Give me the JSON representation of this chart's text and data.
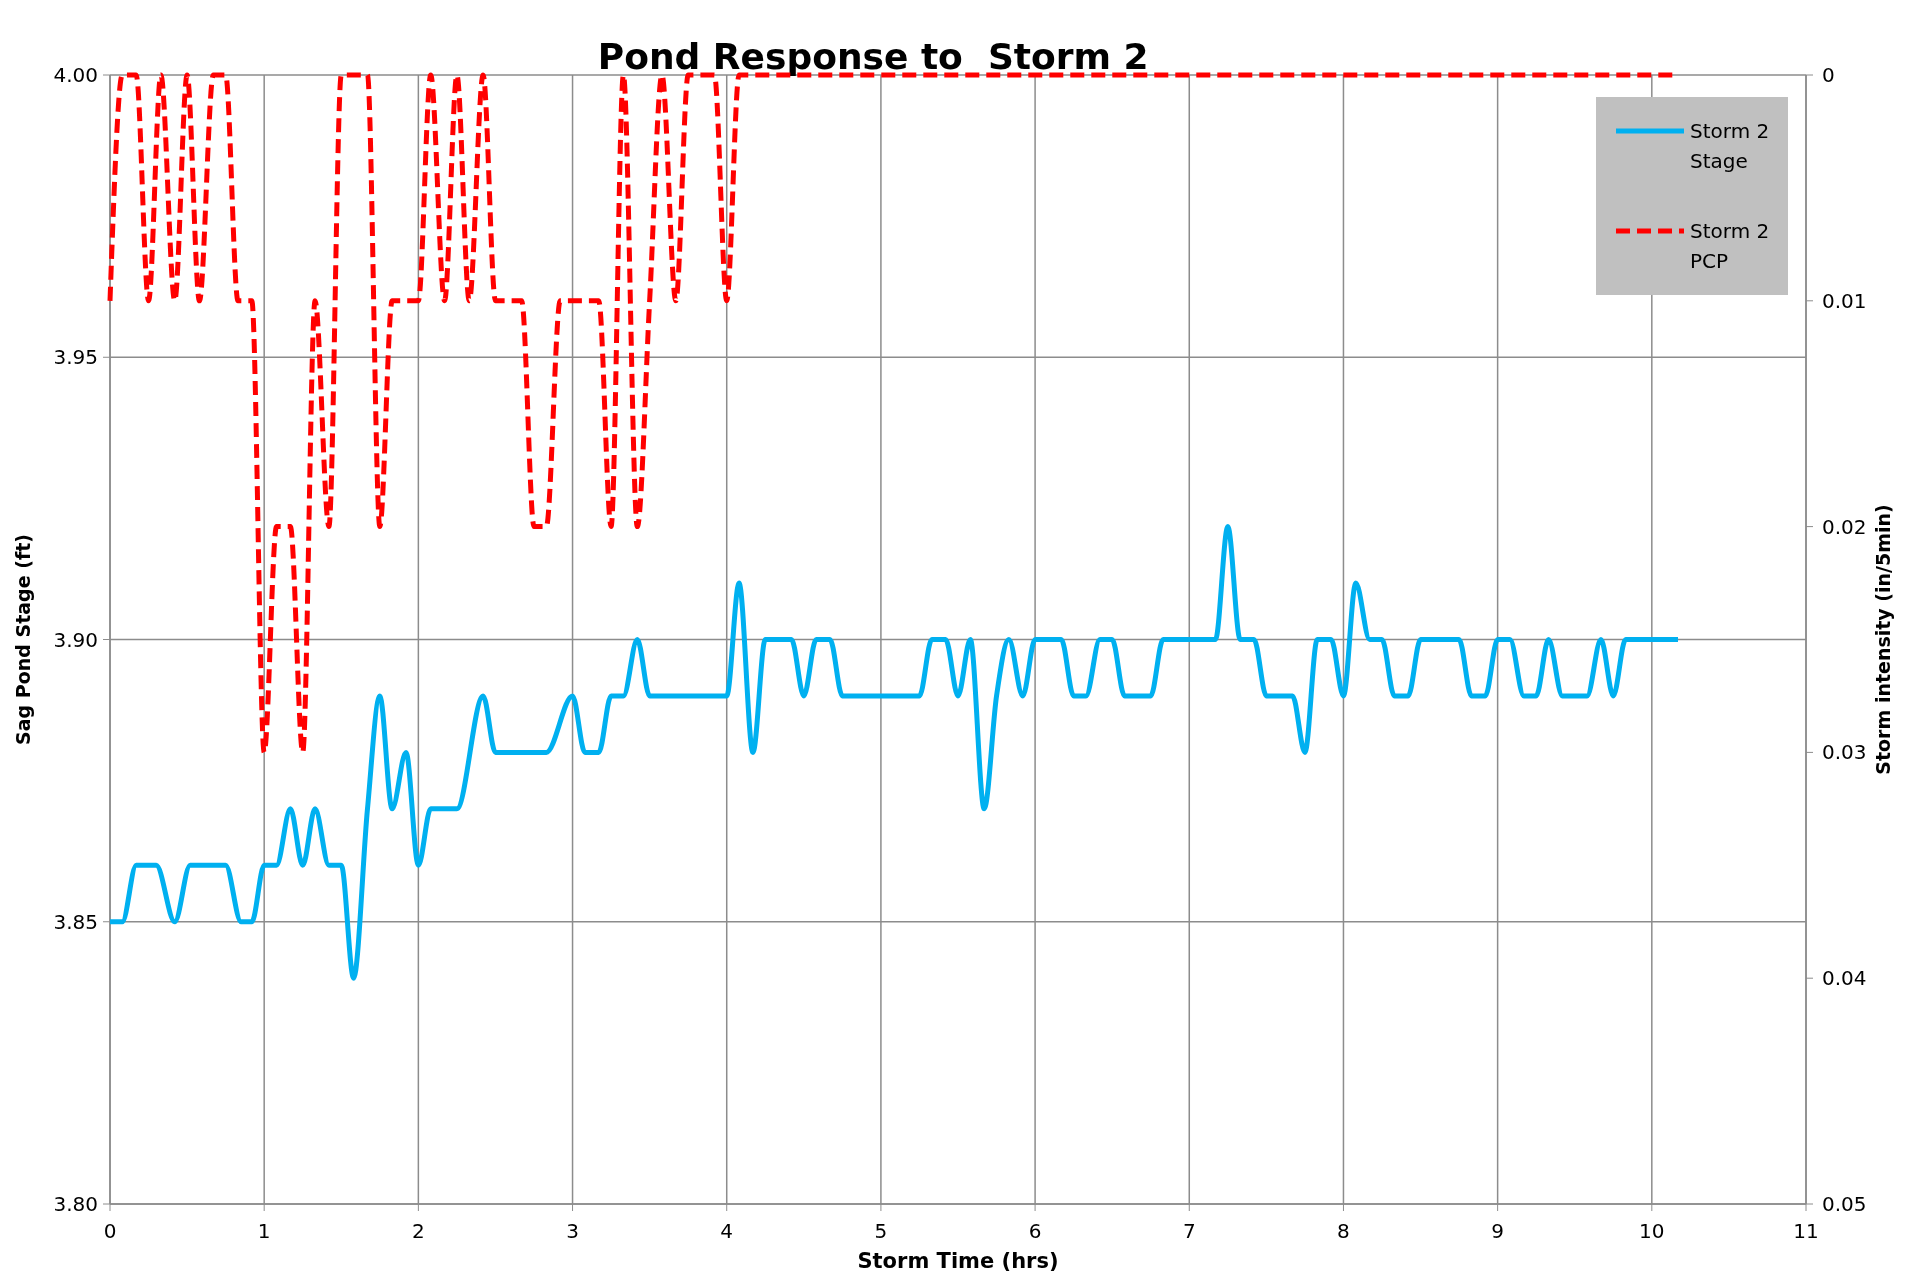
{
  "chart_data": {
    "type": "line",
    "title": "Pond Response to  Storm 2",
    "xlabel": "Storm Time (hrs)",
    "ylabel": "Sag Pond Stage (ft)",
    "y2label": "Storm intensity (in/5min)",
    "xlim": [
      0,
      11
    ],
    "xticks": [
      0,
      1,
      2,
      3,
      4,
      5,
      6,
      7,
      8,
      9,
      10,
      11
    ],
    "ylim": [
      3.8,
      4.0
    ],
    "yticks": [
      {
        "value": 3.8,
        "label": "3.80"
      },
      {
        "value": 3.85,
        "label": "3.85"
      },
      {
        "value": 3.9,
        "label": "3.90"
      },
      {
        "value": 3.95,
        "label": "3.95"
      },
      {
        "value": 4.0,
        "label": "4.00"
      }
    ],
    "y2lim": [
      0.05,
      0
    ],
    "y2ticks": [
      0,
      0.01,
      0.02,
      0.03,
      0.04,
      0.05
    ],
    "grid": true,
    "legend": "top right",
    "marker": "none",
    "series": [
      {
        "name": "Storm 2 Stage",
        "color": "#00b0f0",
        "line_style": "solid",
        "x": [
          0,
          0.08,
          0.17,
          0.3,
          0.42,
          0.52,
          0.75,
          0.85,
          0.92,
          1.0,
          1.08,
          1.17,
          1.25,
          1.33,
          1.42,
          1.5,
          1.58,
          1.67,
          1.75,
          1.83,
          1.92,
          2.0,
          2.08,
          2.25,
          2.42,
          2.5,
          2.83,
          3.0,
          3.08,
          3.17,
          3.25,
          3.33,
          3.42,
          3.5,
          4.0,
          4.08,
          4.17,
          4.25,
          4.42,
          4.5,
          4.58,
          4.67,
          4.75,
          5.25,
          5.33,
          5.42,
          5.5,
          5.58,
          5.67,
          5.75,
          5.83,
          5.92,
          6.0,
          6.17,
          6.25,
          6.33,
          6.42,
          6.5,
          6.58,
          6.75,
          6.83,
          7.17,
          7.25,
          7.33,
          7.42,
          7.5,
          7.67,
          7.75,
          7.83,
          7.92,
          8.0,
          8.08,
          8.17,
          8.25,
          8.33,
          8.42,
          8.5,
          8.75,
          8.83,
          8.92,
          9.0,
          9.08,
          9.17,
          9.25,
          9.33,
          9.42,
          9.58,
          9.67,
          9.75,
          9.83,
          10.17
        ],
        "values": [
          3.85,
          3.85,
          3.86,
          3.86,
          3.85,
          3.86,
          3.86,
          3.85,
          3.85,
          3.86,
          3.86,
          3.87,
          3.86,
          3.87,
          3.86,
          3.86,
          3.84,
          3.87,
          3.89,
          3.87,
          3.88,
          3.86,
          3.87,
          3.87,
          3.89,
          3.88,
          3.88,
          3.89,
          3.88,
          3.88,
          3.89,
          3.89,
          3.9,
          3.89,
          3.89,
          3.91,
          3.88,
          3.9,
          3.9,
          3.89,
          3.9,
          3.9,
          3.89,
          3.89,
          3.9,
          3.9,
          3.89,
          3.9,
          3.87,
          3.89,
          3.9,
          3.89,
          3.9,
          3.9,
          3.89,
          3.89,
          3.9,
          3.9,
          3.89,
          3.89,
          3.9,
          3.9,
          3.92,
          3.9,
          3.9,
          3.89,
          3.89,
          3.88,
          3.9,
          3.9,
          3.89,
          3.91,
          3.9,
          3.9,
          3.89,
          3.89,
          3.9,
          3.9,
          3.89,
          3.89,
          3.9,
          3.9,
          3.89,
          3.89,
          3.9,
          3.89,
          3.89,
          3.9,
          3.89,
          3.9,
          3.9
        ]
      },
      {
        "name": "Storm 2 PCP",
        "color": "#ff0000",
        "line_style": "dashed",
        "axis": "y2",
        "x": [
          0,
          0.08,
          0.17,
          0.25,
          0.33,
          0.42,
          0.5,
          0.58,
          0.67,
          0.75,
          0.83,
          0.92,
          1.0,
          1.08,
          1.17,
          1.25,
          1.33,
          1.42,
          1.5,
          1.58,
          1.67,
          1.75,
          1.83,
          1.92,
          2.0,
          2.08,
          2.17,
          2.25,
          2.33,
          2.42,
          2.5,
          2.58,
          2.67,
          2.75,
          2.83,
          2.92,
          3.0,
          3.08,
          3.17,
          3.25,
          3.33,
          3.42,
          3.5,
          3.58,
          3.67,
          3.75,
          3.83,
          3.92,
          4.0,
          4.08,
          10.17
        ],
        "values": [
          0.01,
          0,
          0,
          0.01,
          0,
          0.01,
          0,
          0.01,
          0,
          0,
          0.01,
          0.01,
          0.03,
          0.02,
          0.02,
          0.03,
          0.01,
          0.02,
          0,
          0,
          0,
          0.02,
          0.01,
          0.01,
          0.01,
          0,
          0.01,
          0,
          0.01,
          0,
          0.01,
          0.01,
          0.01,
          0.02,
          0.02,
          0.01,
          0.01,
          0.01,
          0.01,
          0.02,
          0,
          0.02,
          0.01,
          0,
          0.01,
          0,
          0,
          0,
          0.01,
          0,
          0
        ]
      }
    ]
  }
}
